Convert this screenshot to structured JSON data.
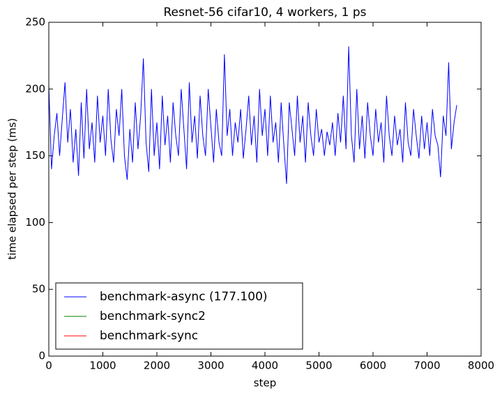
{
  "chart_data": {
    "type": "line",
    "title": "Resnet-56 cifar10, 4 workers, 1 ps",
    "x_label": "step",
    "y_label": "time elapsed per step (ms)",
    "xlim": [
      0,
      8000
    ],
    "xticks": [
      0,
      1000,
      2000,
      3000,
      4000,
      5000,
      6000,
      7000,
      8000
    ],
    "ylim": [
      0,
      250
    ],
    "yticks": [
      0,
      50,
      100,
      150,
      200,
      250
    ],
    "legend": "lower left",
    "series": [
      {
        "name": "benchmark-async (177.100)",
        "color": "#0000ff",
        "x": [
          0,
          50,
          100,
          150,
          200,
          250,
          300,
          350,
          400,
          450,
          500,
          550,
          600,
          650,
          700,
          750,
          800,
          850,
          900,
          950,
          1000,
          1050,
          1100,
          1150,
          1200,
          1250,
          1300,
          1350,
          1400,
          1450,
          1500,
          1550,
          1600,
          1650,
          1700,
          1750,
          1800,
          1850,
          1900,
          1950,
          2000,
          2050,
          2100,
          2150,
          2200,
          2250,
          2300,
          2350,
          2400,
          2450,
          2500,
          2550,
          2600,
          2650,
          2700,
          2750,
          2800,
          2850,
          2900,
          2950,
          3000,
          3050,
          3100,
          3150,
          3200,
          3250,
          3300,
          3350,
          3400,
          3450,
          3500,
          3550,
          3600,
          3650,
          3700,
          3750,
          3800,
          3850,
          3900,
          3950,
          4000,
          4050,
          4100,
          4150,
          4200,
          4250,
          4300,
          4350,
          4400,
          4450,
          4500,
          4550,
          4600,
          4650,
          4700,
          4750,
          4800,
          4850,
          4900,
          4950,
          5000,
          5050,
          5100,
          5150,
          5200,
          5250,
          5300,
          5350,
          5400,
          5450,
          5500,
          5550,
          5600,
          5650,
          5700,
          5750,
          5800,
          5850,
          5900,
          5950,
          6000,
          6050,
          6100,
          6150,
          6200,
          6250,
          6300,
          6350,
          6400,
          6450,
          6500,
          6550,
          6600,
          6650,
          6700,
          6750,
          6800,
          6850,
          6900,
          6950,
          7000,
          7050,
          7100,
          7150,
          7200,
          7250,
          7300,
          7350,
          7400,
          7450,
          7500,
          7550
        ],
        "values": [
          203,
          140,
          165,
          182,
          150,
          178,
          205,
          160,
          185,
          145,
          170,
          135,
          190,
          148,
          200,
          155,
          175,
          145,
          195,
          160,
          180,
          150,
          200,
          162,
          145,
          185,
          165,
          200,
          150,
          132,
          170,
          145,
          190,
          155,
          180,
          223,
          160,
          138,
          200,
          150,
          175,
          140,
          195,
          158,
          180,
          145,
          190,
          165,
          150,
          200,
          170,
          140,
          205,
          160,
          180,
          148,
          195,
          165,
          150,
          200,
          172,
          145,
          185,
          160,
          150,
          226,
          165,
          185,
          150,
          175,
          160,
          185,
          148,
          170,
          195,
          158,
          180,
          145,
          200,
          165,
          185,
          150,
          195,
          160,
          175,
          145,
          190,
          158,
          129,
          190,
          170,
          150,
          195,
          160,
          180,
          145,
          190,
          165,
          150,
          185,
          160,
          170,
          150,
          168,
          158,
          175,
          150,
          182,
          160,
          195,
          155,
          232,
          165,
          145,
          200,
          155,
          180,
          148,
          190,
          165,
          150,
          185,
          160,
          175,
          145,
          195,
          165,
          150,
          180,
          158,
          170,
          145,
          190,
          160,
          150,
          185,
          165,
          148,
          180,
          155,
          175,
          150,
          185,
          165,
          158,
          134,
          180,
          165,
          220,
          155,
          175,
          188
        ]
      },
      {
        "name": "benchmark-sync2",
        "color": "#008000",
        "x": [],
        "values": []
      },
      {
        "name": "benchmark-sync",
        "color": "#ff0000",
        "x": [],
        "values": []
      }
    ]
  }
}
